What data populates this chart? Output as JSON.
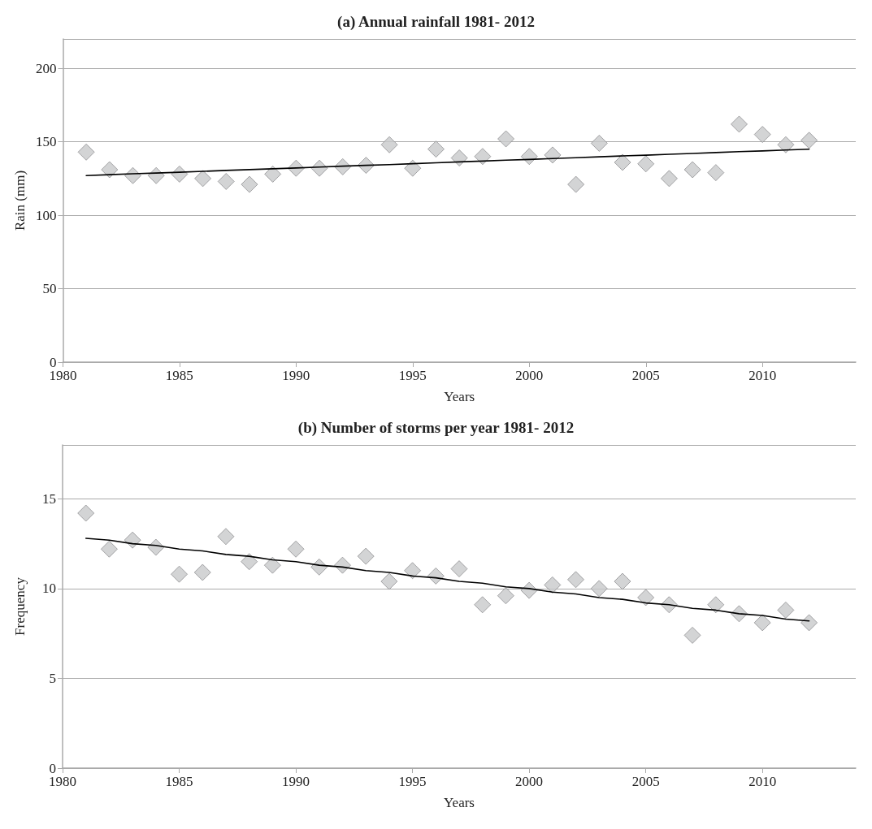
{
  "chart_data": [
    {
      "type": "scatter",
      "title": "(a) Annual rainfall 1981- 2012",
      "xlabel": "Years",
      "ylabel": "Rain (mm)",
      "xlim": [
        1980,
        2014
      ],
      "xticks": [
        1980,
        1985,
        1990,
        1995,
        2000,
        2005,
        2010
      ],
      "ylim": [
        0,
        220
      ],
      "yticks": [
        0,
        50,
        100,
        150,
        200
      ],
      "grid": "y",
      "marker": "diamond",
      "x": [
        1981,
        1982,
        1983,
        1984,
        1985,
        1986,
        1987,
        1988,
        1989,
        1990,
        1991,
        1992,
        1993,
        1994,
        1995,
        1996,
        1997,
        1998,
        1999,
        2000,
        2001,
        2002,
        2003,
        2004,
        2005,
        2006,
        2007,
        2008,
        2009,
        2010,
        2011,
        2012
      ],
      "series": [
        {
          "color": "#c8c9cb",
          "values": [
            143,
            131,
            127,
            127,
            128,
            125,
            123,
            121,
            128,
            132,
            132,
            133,
            134,
            148,
            132,
            145,
            139,
            140,
            152,
            140,
            141,
            121,
            149,
            136,
            135,
            125,
            131,
            129,
            162,
            155,
            148,
            151
          ]
        },
        {
          "type": "line",
          "color": "#000000",
          "marker": "none",
          "line_style": "solid",
          "values": [
            127.0,
            127.6,
            128.2,
            128.7,
            129.3,
            129.9,
            130.5,
            131.1,
            131.6,
            132.2,
            132.8,
            133.4,
            134.0,
            134.5,
            135.1,
            135.7,
            136.3,
            136.9,
            137.5,
            138.0,
            138.6,
            139.2,
            139.8,
            140.4,
            140.9,
            141.5,
            142.1,
            142.7,
            143.3,
            143.8,
            144.4,
            145.0
          ]
        }
      ]
    },
    {
      "type": "scatter",
      "title": "(b) Number of storms per year 1981- 2012",
      "xlabel": "Years",
      "ylabel": "Frequency",
      "xlim": [
        1980,
        2014
      ],
      "xticks": [
        1980,
        1985,
        1990,
        1995,
        2000,
        2005,
        2010
      ],
      "ylim": [
        0,
        18
      ],
      "yticks": [
        0,
        5,
        10,
        15
      ],
      "grid": "y",
      "marker": "diamond",
      "x": [
        1981,
        1982,
        1983,
        1984,
        1985,
        1986,
        1987,
        1988,
        1989,
        1990,
        1991,
        1992,
        1993,
        1994,
        1995,
        1996,
        1997,
        1998,
        1999,
        2000,
        2001,
        2002,
        2003,
        2004,
        2005,
        2006,
        2007,
        2008,
        2009,
        2010,
        2011,
        2012
      ],
      "series": [
        {
          "color": "#c8c9cb",
          "values": [
            14.2,
            12.2,
            12.7,
            12.3,
            10.8,
            10.9,
            12.9,
            11.5,
            11.3,
            12.2,
            11.2,
            11.3,
            11.8,
            10.4,
            11.0,
            10.7,
            11.1,
            9.1,
            9.6,
            9.9,
            10.2,
            10.5,
            10.0,
            10.4,
            9.5,
            9.1,
            7.4,
            9.1,
            8.6,
            8.1,
            8.8,
            8.1
          ]
        },
        {
          "type": "line",
          "color": "#000000",
          "marker": "none",
          "line_style": "solid",
          "values": [
            12.8,
            12.7,
            12.5,
            12.4,
            12.2,
            12.1,
            11.9,
            11.8,
            11.6,
            11.5,
            11.3,
            11.2,
            11.0,
            10.9,
            10.7,
            10.6,
            10.4,
            10.3,
            10.1,
            10.0,
            9.8,
            9.7,
            9.5,
            9.4,
            9.2,
            9.1,
            8.9,
            8.8,
            8.6,
            8.5,
            8.3,
            8.2
          ]
        }
      ]
    }
  ]
}
